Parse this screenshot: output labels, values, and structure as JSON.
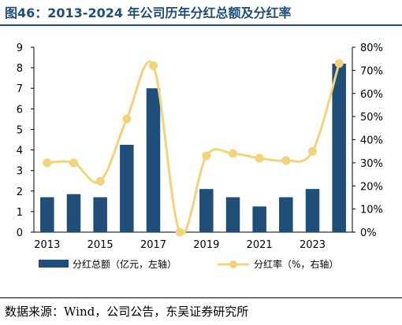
{
  "title": "图46：2013-2024 年公司历年分红总额及分红率",
  "source": "数据来源：Wind，公司公告，东吴证券研究所",
  "colors": {
    "bar": "#1f4e79",
    "line": "#f2d37a",
    "title": "#1f4e79"
  },
  "chart_data": {
    "type": "bar",
    "categories": [
      "2013",
      "2014",
      "2015",
      "2016",
      "2017",
      "2018",
      "2019",
      "2020",
      "2021",
      "2022",
      "2023",
      "2024"
    ],
    "x_tick_labels": [
      "2013",
      "2015",
      "2017",
      "2019",
      "2021",
      "2023"
    ],
    "series": [
      {
        "name": "分红总额（亿元，左轴）",
        "type": "bar",
        "axis": "left",
        "values": [
          1.7,
          1.85,
          1.7,
          4.25,
          7.0,
          0,
          2.1,
          1.7,
          1.25,
          1.7,
          2.1,
          8.2
        ]
      },
      {
        "name": "分红率（%，右轴）",
        "type": "line",
        "smooth": true,
        "axis": "right",
        "values": [
          30,
          30,
          22,
          49,
          72,
          0,
          33,
          34,
          32,
          31,
          35,
          73
        ]
      }
    ],
    "y_left": {
      "min": 0,
      "max": 9,
      "ticks": [
        "0",
        "1",
        "2",
        "3",
        "4",
        "5",
        "6",
        "7",
        "8",
        "9"
      ]
    },
    "y_right": {
      "min": 0,
      "max": 80,
      "ticks": [
        "0%",
        "10%",
        "20%",
        "30%",
        "40%",
        "50%",
        "60%",
        "70%",
        "80%"
      ]
    },
    "legend_position": "bottom",
    "grid": false
  }
}
